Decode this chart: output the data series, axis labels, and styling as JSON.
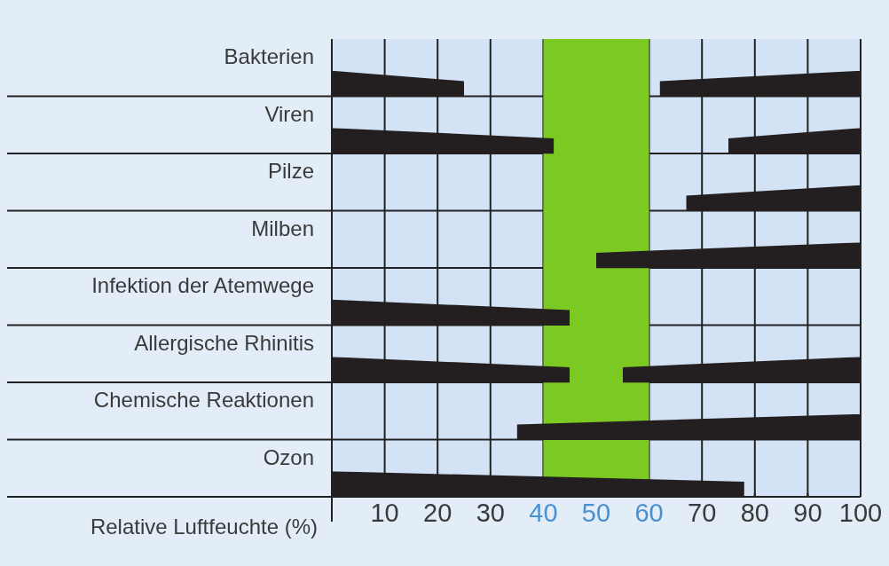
{
  "chart_data": {
    "type": "bar",
    "orientation": "horizontal",
    "xlabel": "Relative Luftfeuchte (%)",
    "categories": [
      "Bakterien",
      "Viren",
      "Pilze",
      "Milben",
      "Infektion der Atemwege",
      "Allergische Rhinitis",
      "Chemische Reaktionen",
      "Ozon"
    ],
    "series": [
      {
        "color": "#231f20",
        "base": [
          0,
          0,
          null,
          null,
          0,
          0,
          null,
          0
        ],
        "values": [
          25,
          42,
          null,
          null,
          45,
          45,
          null,
          78
        ]
      },
      {
        "color": "#231f20",
        "base": [
          62,
          75,
          67,
          50,
          null,
          55,
          35,
          null
        ],
        "values": [
          38,
          25,
          33,
          50,
          null,
          45,
          65,
          null
        ]
      }
    ],
    "xlim": [
      0,
      100
    ],
    "xticks": [
      {
        "value": 0,
        "label": null
      },
      10,
      20,
      30,
      40,
      50,
      60,
      70,
      80,
      90,
      100
    ],
    "bands": [
      {
        "axis": "x",
        "from": 40,
        "to": 60,
        "color": "#7dc924"
      }
    ],
    "grid": true
  }
}
